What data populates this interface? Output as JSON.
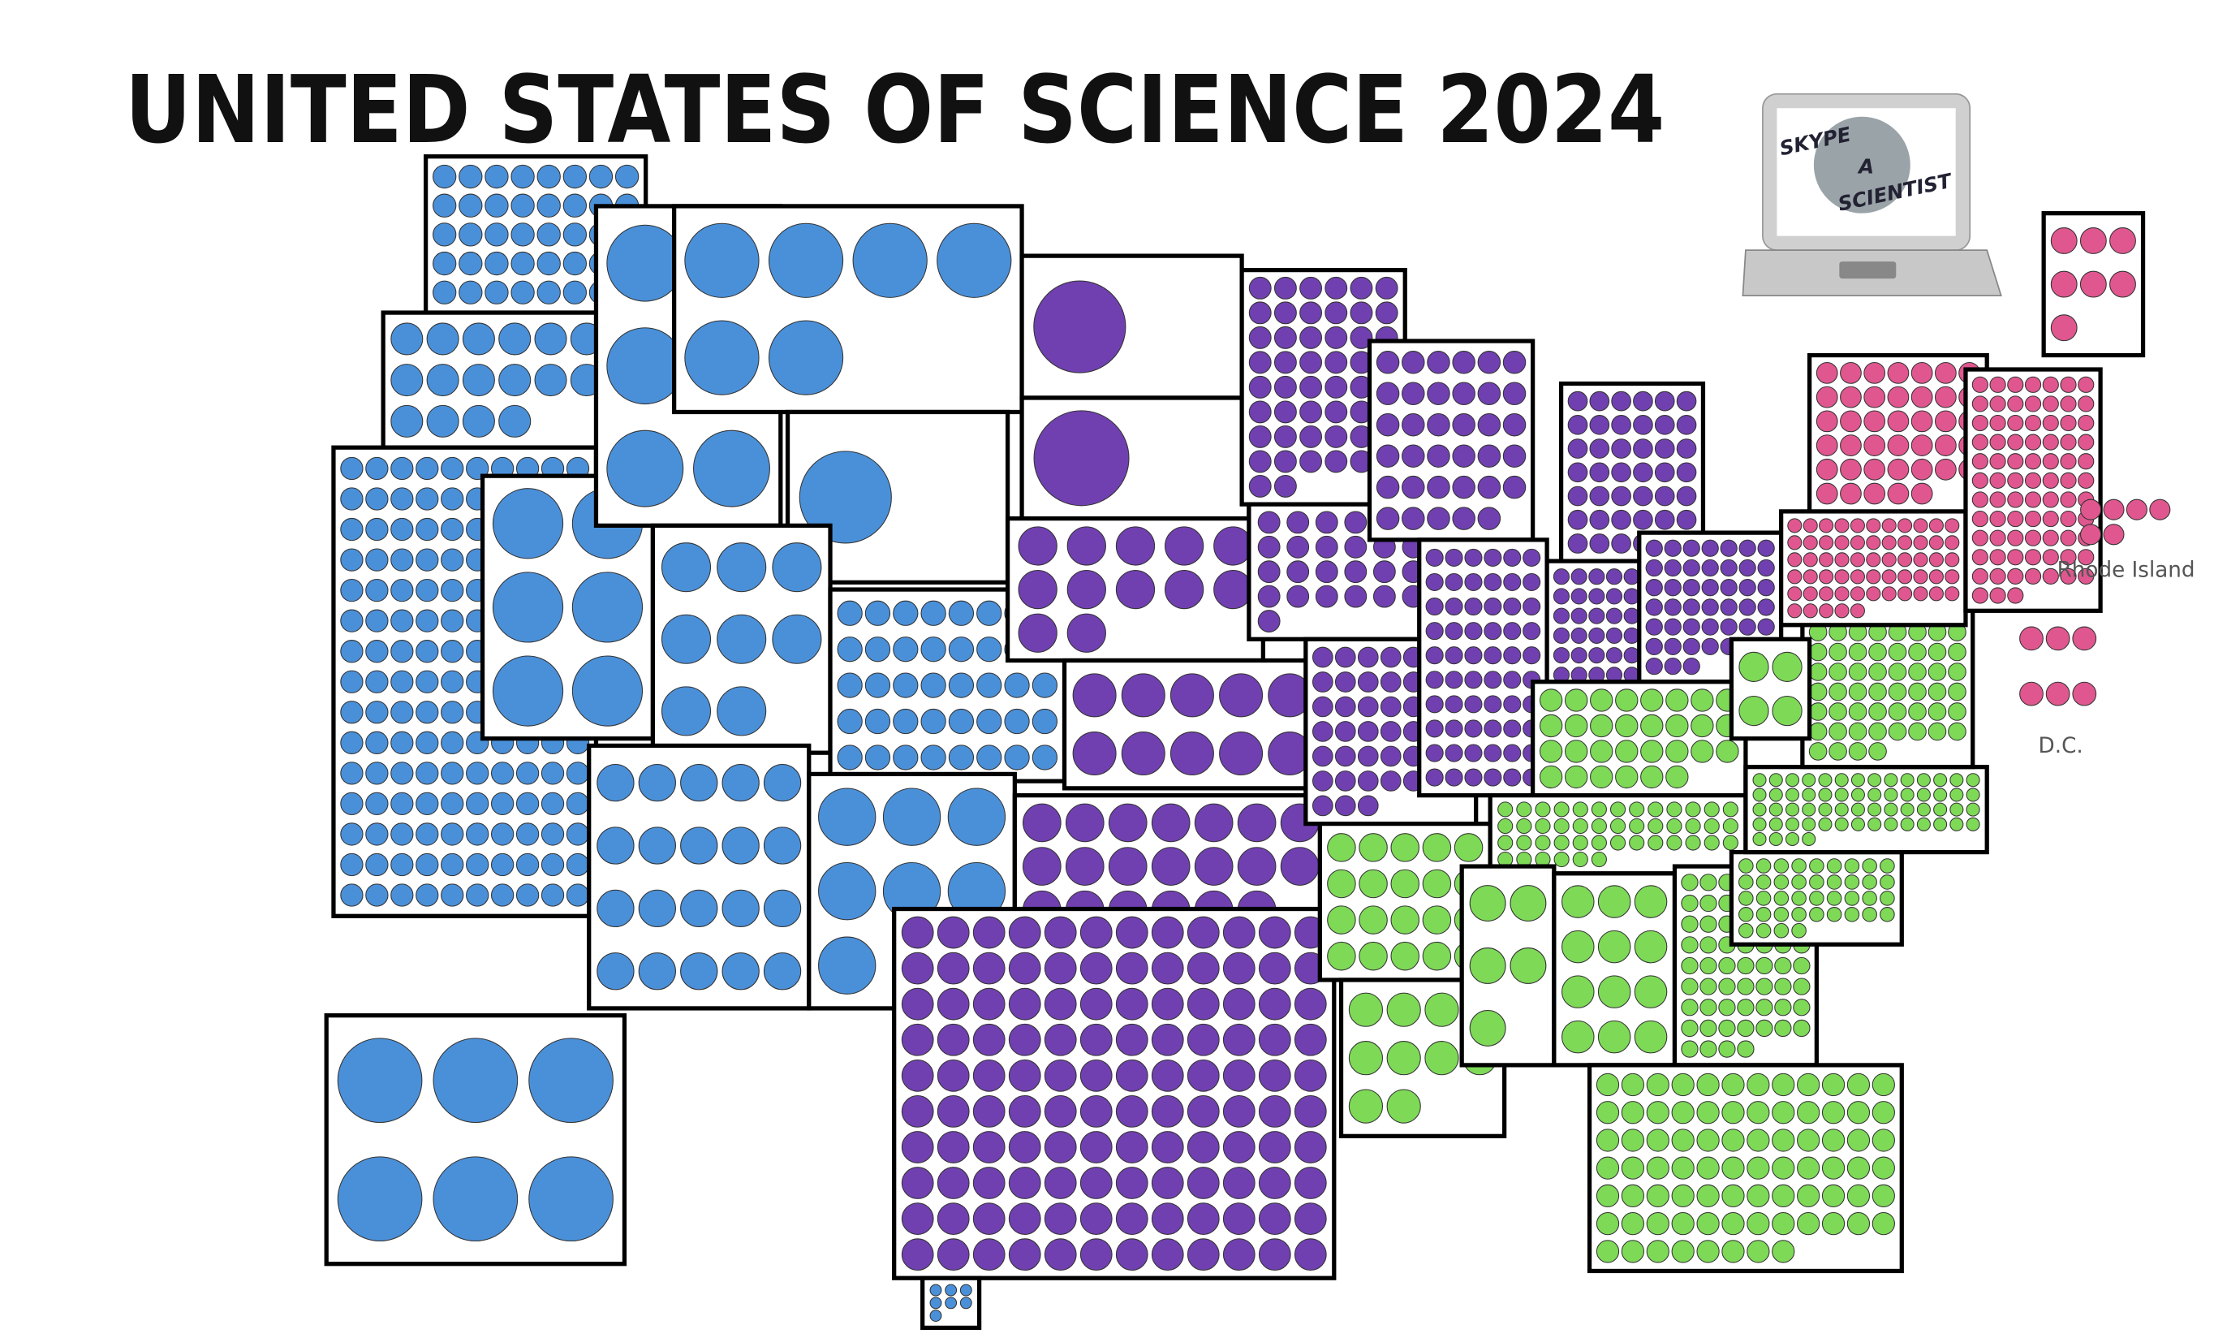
{
  "title": "UNITED STATES OF SCIENCE 2024",
  "logo": {
    "lines": [
      "SKYPE",
      "A",
      "SCIENTIST"
    ]
  },
  "states": [
    {
      "circles": 40,
      "color": "#4a90d9"
    },
    {
      "circles": 16,
      "color": "#4a90d9"
    },
    {
      "circles": 150,
      "color": "#4a90d9"
    },
    {
      "circles": 6,
      "color": "#4a90d9"
    },
    {
      "circles": 6,
      "color": "#4a90d9"
    },
    {
      "circles": 6,
      "color": "#4a90d9"
    },
    {
      "circles": 1,
      "color": "#4a90d9"
    },
    {
      "circles": 8,
      "color": "#4a90d9"
    },
    {
      "circles": 40,
      "color": "#4a90d9"
    },
    {
      "circles": 20,
      "color": "#4a90d9"
    },
    {
      "circles": 7,
      "color": "#4a90d9"
    },
    {
      "circles": 1,
      "color": "#7040b0"
    },
    {
      "circles": 1,
      "color": "#7040b0"
    },
    {
      "circles": 12,
      "color": "#7040b0"
    },
    {
      "circles": 10,
      "color": "#7040b0"
    },
    {
      "circles": 20,
      "color": "#7040b0"
    },
    {
      "circles": 120,
      "color": "#7040b0"
    },
    {
      "circles": 50,
      "color": "#7040b0"
    },
    {
      "circles": 25,
      "color": "#7040b0"
    },
    {
      "circles": 45,
      "color": "#7040b0"
    },
    {
      "circles": 20,
      "color": "#7ed957"
    },
    {
      "circles": 10,
      "color": "#7ed957"
    },
    {
      "circles": 35,
      "color": "#7040b0"
    },
    {
      "circles": 60,
      "color": "#7040b0"
    },
    {
      "circles": 40,
      "color": "#7040b0"
    },
    {
      "circles": 35,
      "color": "#7040b0"
    },
    {
      "circles": 45,
      "color": "#7040b0"
    },
    {
      "circles": 30,
      "color": "#7ed957"
    },
    {
      "circles": 45,
      "color": "#7ed957"
    },
    {
      "circles": 5,
      "color": "#7ed957"
    },
    {
      "circles": 12,
      "color": "#7ed957"
    },
    {
      "circles": 60,
      "color": "#7ed957"
    },
    {
      "circles": 80,
      "color": "#7ed957"
    },
    {
      "circles": 40,
      "color": "#7ed957"
    },
    {
      "circles": 60,
      "color": "#7ed957"
    },
    {
      "circles": 60,
      "color": "#7ed957"
    },
    {
      "circles": 4,
      "color": "#7ed957"
    },
    {
      "circles": 60,
      "color": "#e0578f"
    },
    {
      "circles": 40,
      "color": "#e0578f"
    },
    {
      "circles": 7,
      "color": "#e0578f"
    },
    {
      "circles": 80,
      "color": "#e0578f"
    },
    {
      "circles": 6,
      "color": "#4a90d9"
    },
    {
      "circles": 7,
      "color": "#4a90d9"
    }
  ],
  "insets": [
    {
      "label": "Rhode Island",
      "circles": 6,
      "color": "#e0578f"
    },
    {
      "label": "D.C.",
      "circles": 6,
      "color": "#e0578f"
    }
  ]
}
